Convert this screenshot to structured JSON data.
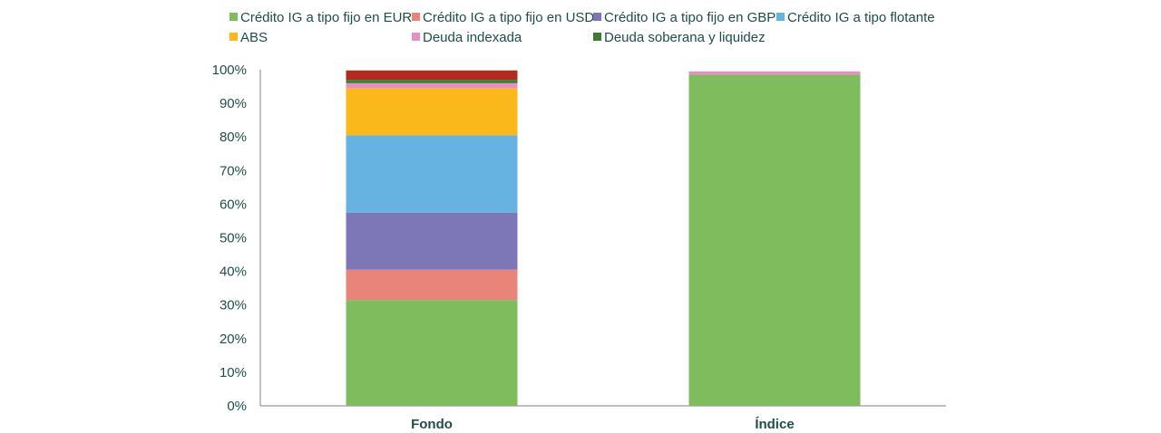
{
  "chart_data": {
    "type": "bar",
    "stacked": true,
    "categories": [
      "Fondo",
      "Índice"
    ],
    "series": [
      {
        "name": "Crédito IG a tipo fijo en EUR",
        "color": "#7fbc5e",
        "values": [
          31.5,
          98.5
        ]
      },
      {
        "name": "Crédito IG a tipo fijo en USD",
        "color": "#e8847a",
        "values": [
          9.0,
          0.0
        ]
      },
      {
        "name": "Crédito IG a tipo fijo en GBP",
        "color": "#7d76b7",
        "values": [
          17.0,
          0.0
        ]
      },
      {
        "name": "Crédito IG a tipo flotante",
        "color": "#66b3e1",
        "values": [
          23.0,
          0.0
        ]
      },
      {
        "name": "ABS",
        "color": "#fbb81b",
        "values": [
          14.0,
          0.0
        ]
      },
      {
        "name": "Deuda indexada",
        "color": "#e58fc2",
        "values": [
          1.5,
          1.0
        ]
      },
      {
        "name": "Deuda soberana y liquidez",
        "color": "#3e7a34",
        "values": [
          1.0,
          0.0
        ]
      },
      {
        "name": "",
        "color": "#b12c20",
        "values": [
          2.8,
          0.0
        ]
      }
    ],
    "y_ticks": [
      "0%",
      "10%",
      "20%",
      "30%",
      "40%",
      "50%",
      "60%",
      "70%",
      "80%",
      "90%",
      "100%"
    ],
    "ylim": [
      0,
      100
    ],
    "legend_position": "top",
    "grid": false
  }
}
